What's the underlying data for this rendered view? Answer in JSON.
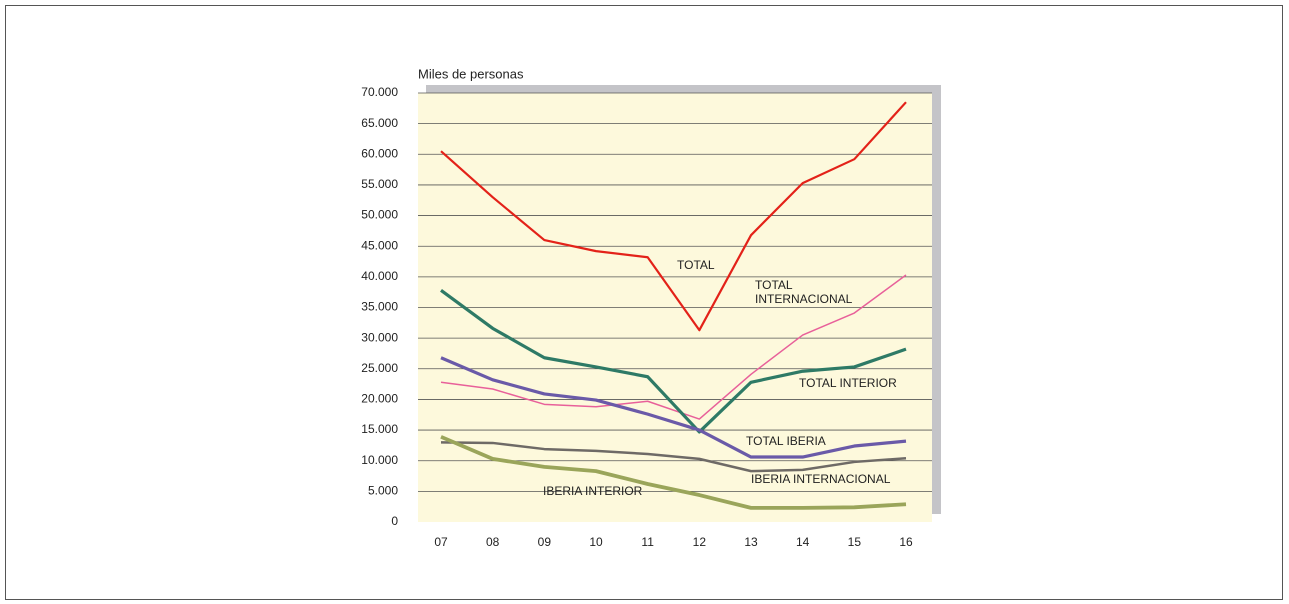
{
  "chart_data": {
    "type": "line",
    "y_label": "Miles de personas",
    "categories": [
      "07",
      "08",
      "09",
      "10",
      "11",
      "12",
      "13",
      "14",
      "15",
      "16"
    ],
    "ylim": [
      0,
      70000
    ],
    "yticks": [
      0,
      {
        "value": 5000,
        "label": "5.000"
      },
      {
        "value": 10000,
        "label": "10.000"
      },
      {
        "value": 15000,
        "label": "15.000"
      },
      {
        "value": 20000,
        "label": "20.000"
      },
      {
        "value": 25000,
        "label": "25.000"
      },
      {
        "value": 30000,
        "label": "30.000"
      },
      {
        "value": 35000,
        "label": "35.000"
      },
      {
        "value": 40000,
        "label": "40.000"
      },
      {
        "value": 45000,
        "label": "45.000"
      },
      {
        "value": 50000,
        "label": "50.000"
      },
      {
        "value": 55000,
        "label": "55.000"
      },
      {
        "value": 60000,
        "label": "60.000"
      },
      {
        "value": 65000,
        "label": "65.000"
      },
      {
        "value": 70000,
        "label": "70.000"
      }
    ],
    "grid": true,
    "series": [
      {
        "name": "TOTAL",
        "color": "#e32219",
        "values": [
          60500,
          53000,
          46000,
          44200,
          43200,
          31300,
          46800,
          55300,
          59200,
          68500
        ]
      },
      {
        "name": "TOTAL INTERNACIONAL",
        "color": "#e8609a",
        "values": [
          22800,
          21700,
          19200,
          18800,
          19700,
          16800,
          24100,
          30500,
          34100,
          40300
        ]
      },
      {
        "name": "TOTAL INTERIOR",
        "color": "#2e7a66",
        "values": [
          37800,
          31600,
          26800,
          25300,
          23700,
          14700,
          22800,
          24600,
          25300,
          28200
        ]
      },
      {
        "name": "TOTAL IBERIA",
        "color": "#6a5aa8",
        "values": [
          26800,
          23200,
          20900,
          19900,
          17600,
          15000,
          10600,
          10600,
          12400,
          13200
        ]
      },
      {
        "name": "IBERIA INTERNACIONAL",
        "color": "#6e6a66",
        "values": [
          13000,
          12900,
          11900,
          11600,
          11100,
          10300,
          8300,
          8500,
          9800,
          10400
        ]
      },
      {
        "name": "IBERIA INTERIOR",
        "color": "#9aa55a",
        "values": [
          13900,
          10300,
          9000,
          8300,
          6200,
          4400,
          2300,
          2300,
          2400,
          2900
        ]
      }
    ]
  }
}
